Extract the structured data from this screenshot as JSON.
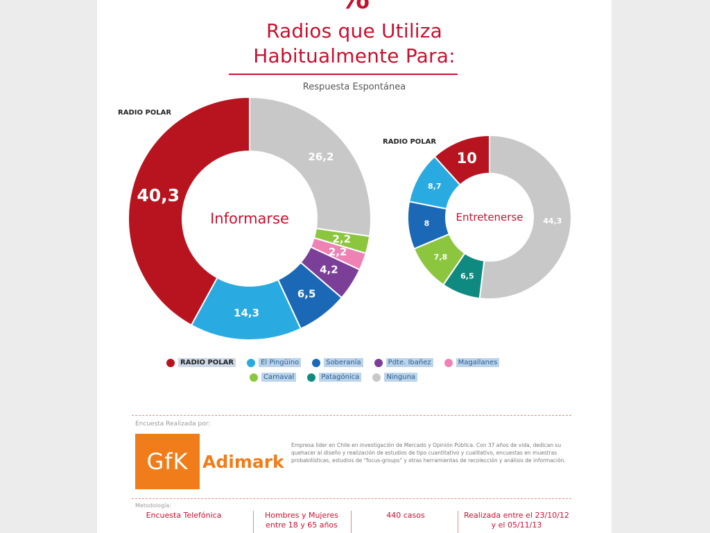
{
  "header": {
    "pct_symbol": "%",
    "title_line_1": "Radios que Utiliza",
    "title_line_2": "Habitualmente Para:",
    "subtitle": "Respuesta Espontánea"
  },
  "colors": {
    "radio_polar": "#b8141f",
    "el_pinguino": "#29abe2",
    "soberania": "#1b69b6",
    "pdte_ibanez": "#7b3f98",
    "magallanes": "#ee82b4",
    "carnaval": "#8cc63f",
    "patagonica": "#0f8a80",
    "ninguna": "#c8c8c8",
    "title_red": "#c8102e",
    "gfk_orange": "#f07d1a"
  },
  "chart_data": [
    {
      "type": "pie",
      "variant": "donut",
      "center_label": "Informarse",
      "callout": "RADIO POLAR",
      "slices": [
        {
          "name": "Ninguna",
          "value": 26.2,
          "label": "26,2",
          "color_key": "ninguna"
        },
        {
          "name": "Carnaval",
          "value": 2.2,
          "label": "2,2",
          "color_key": "carnaval"
        },
        {
          "name": "Magallanes",
          "value": 2.2,
          "label": "2,2",
          "color_key": "magallanes"
        },
        {
          "name": "Pdte. Ibañez",
          "value": 4.2,
          "label": "4,2",
          "color_key": "pdte_ibanez"
        },
        {
          "name": "Soberanía",
          "value": 6.5,
          "label": "6,5",
          "color_key": "soberania"
        },
        {
          "name": "El Pingüino",
          "value": 14.3,
          "label": "14,3",
          "color_key": "el_pinguino"
        },
        {
          "name": "Radio Polar",
          "value": 40.3,
          "label": "40,3",
          "color_key": "radio_polar"
        }
      ]
    },
    {
      "type": "pie",
      "variant": "donut",
      "center_label": "Entretenerse",
      "callout": "RADIO POLAR",
      "slices": [
        {
          "name": "Ninguna",
          "value": 44.3,
          "label": "44,3",
          "color_key": "ninguna"
        },
        {
          "name": "Patagónica",
          "value": 6.5,
          "label": "6,5",
          "color_key": "patagonica"
        },
        {
          "name": "Carnaval",
          "value": 7.8,
          "label": "7,8",
          "color_key": "carnaval"
        },
        {
          "name": "Soberanía",
          "value": 8,
          "label": "8",
          "color_key": "soberania"
        },
        {
          "name": "El Pingüino",
          "value": 8.7,
          "label": "8,7",
          "color_key": "el_pinguino"
        },
        {
          "name": "Radio Polar",
          "value": 10,
          "label": "10",
          "color_key": "radio_polar"
        }
      ]
    }
  ],
  "legend": {
    "row1": [
      {
        "label": "RADIO POLAR",
        "color_key": "radio_polar",
        "bold": true
      },
      {
        "label": "El Pingüino",
        "color_key": "el_pinguino"
      },
      {
        "label": "Soberanía",
        "color_key": "soberania"
      },
      {
        "label": "Pdte. Ibañez",
        "color_key": "pdte_ibanez"
      },
      {
        "label": "Magallanes",
        "color_key": "magallanes"
      }
    ],
    "row2": [
      {
        "label": "Carnaval",
        "color_key": "carnaval"
      },
      {
        "label": "Patagónica",
        "color_key": "patagonica"
      },
      {
        "label": "Ninguna",
        "color_key": "ninguna"
      }
    ]
  },
  "footer": {
    "encuesta_label": "Encuesta Realizada por:",
    "gfk_logo": "GfK",
    "adimark": "Adimark",
    "company_description": "Empresa líder en Chile en investigación de Mercado y Opinión Pública. Con 37 años de vida, dedican su quehacer al diseño y realización de estudios de tipo cuantitativo y cualitativo, encuestas en muestras probabilísticas, estudios de \"focus-groups\" y otras herramientas de recolección y análisis de información.",
    "metodologia_label": "Metodología:",
    "method_1": "Encuesta Telefónica",
    "method_2": "Hombres y Mujeres entre 18 y 65 años",
    "method_3": "440 casos",
    "method_4": "Realizada entre el 23/10/12 y el 05/11/13"
  }
}
